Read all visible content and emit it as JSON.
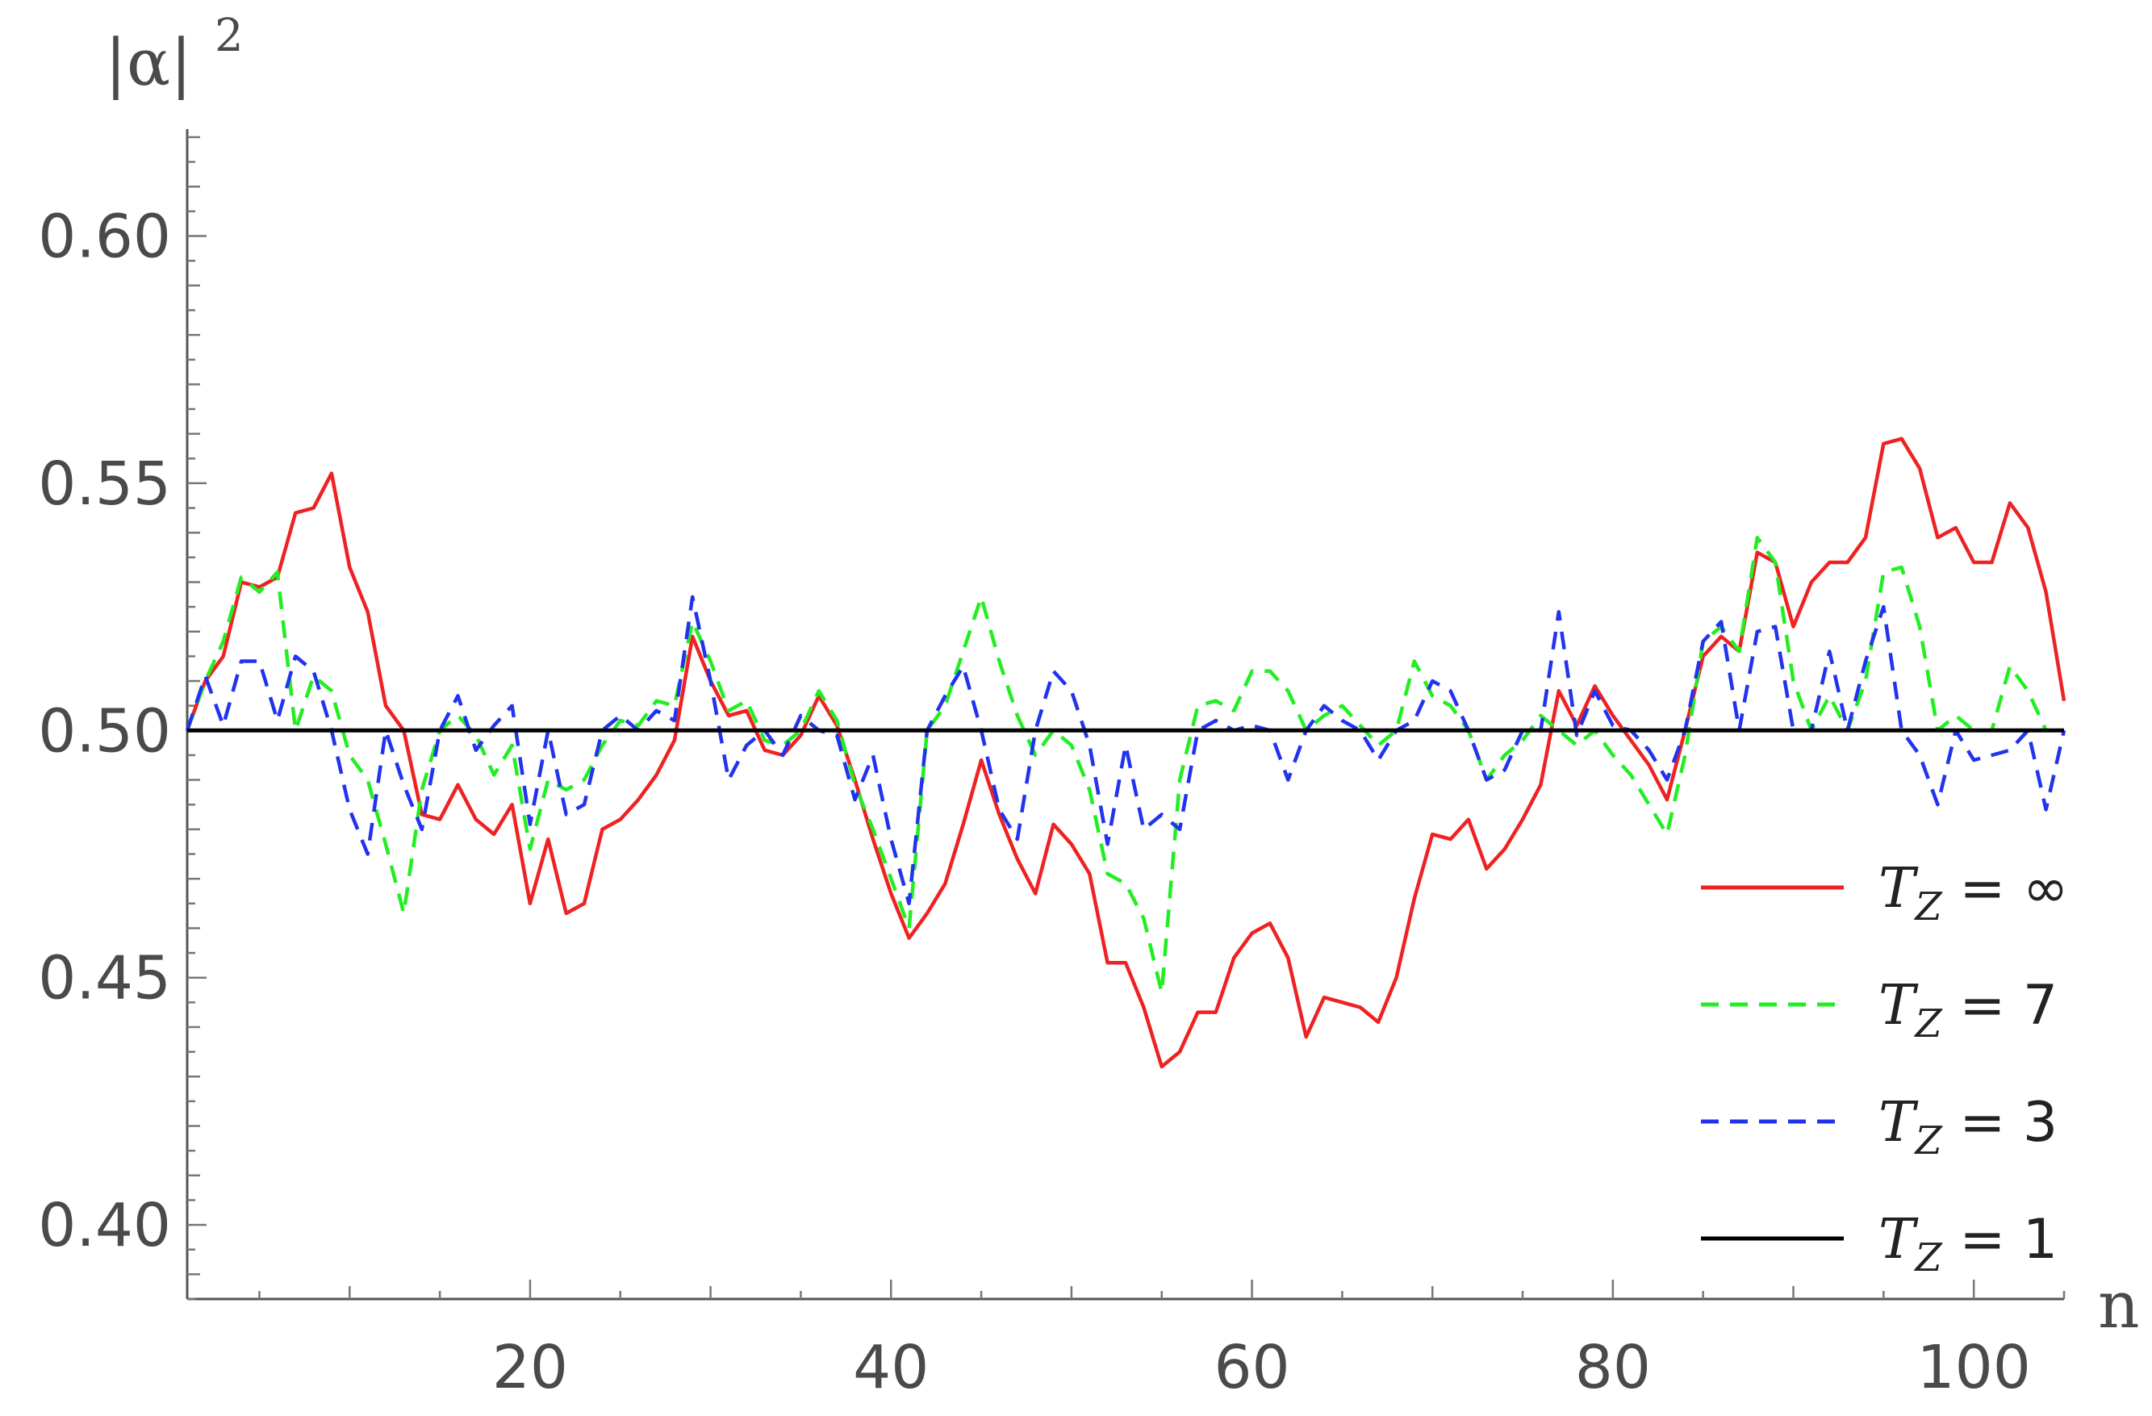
{
  "chart_data": {
    "type": "line",
    "xlabel": "n",
    "ylabel": "|α|",
    "ylabel_sup": "2",
    "xlim": [
      1,
      105
    ],
    "ylim": [
      0.385,
      0.62
    ],
    "xticks": [
      20,
      40,
      60,
      80,
      100
    ],
    "yticks": [
      0.4,
      0.45,
      0.5,
      0.55,
      0.6
    ],
    "ytick_labels": [
      "0.40",
      "0.45",
      "0.50",
      "0.55",
      "0.60"
    ],
    "grid": false,
    "legend_position": "lower-right",
    "series": [
      {
        "name": "T_Z = ∞",
        "legend_prefix": "T",
        "legend_sub": "Z",
        "legend_suffix": " = ∞",
        "color": "#ee2222",
        "dash": "solid",
        "points": [
          [
            1,
            0.5
          ],
          [
            2,
            0.51
          ],
          [
            3,
            0.515
          ],
          [
            4,
            0.53
          ],
          [
            5,
            0.529
          ],
          [
            6,
            0.531
          ],
          [
            7,
            0.544
          ],
          [
            8,
            0.545
          ],
          [
            9,
            0.552
          ],
          [
            10,
            0.533
          ],
          [
            11,
            0.524
          ],
          [
            12,
            0.505
          ],
          [
            13,
            0.5
          ],
          [
            14,
            0.483
          ],
          [
            15,
            0.482
          ],
          [
            16,
            0.489
          ],
          [
            17,
            0.482
          ],
          [
            18,
            0.479
          ],
          [
            19,
            0.485
          ],
          [
            20,
            0.465
          ],
          [
            21,
            0.478
          ],
          [
            22,
            0.463
          ],
          [
            23,
            0.465
          ],
          [
            24,
            0.48
          ],
          [
            25,
            0.482
          ],
          [
            26,
            0.486
          ],
          [
            27,
            0.491
          ],
          [
            28,
            0.498
          ],
          [
            29,
            0.519
          ],
          [
            30,
            0.51
          ],
          [
            31,
            0.503
          ],
          [
            32,
            0.504
          ],
          [
            33,
            0.496
          ],
          [
            34,
            0.495
          ],
          [
            35,
            0.499
          ],
          [
            36,
            0.507
          ],
          [
            37,
            0.501
          ],
          [
            38,
            0.49
          ],
          [
            39,
            0.478
          ],
          [
            40,
            0.467
          ],
          [
            41,
            0.458
          ],
          [
            42,
            0.463
          ],
          [
            43,
            0.469
          ],
          [
            44,
            0.481
          ],
          [
            45,
            0.494
          ],
          [
            46,
            0.483
          ],
          [
            47,
            0.474
          ],
          [
            48,
            0.467
          ],
          [
            49,
            0.481
          ],
          [
            50,
            0.477
          ],
          [
            51,
            0.471
          ],
          [
            52,
            0.453
          ],
          [
            53,
            0.453
          ],
          [
            54,
            0.444
          ],
          [
            55,
            0.432
          ],
          [
            56,
            0.435
          ],
          [
            57,
            0.443
          ],
          [
            58,
            0.443
          ],
          [
            59,
            0.454
          ],
          [
            60,
            0.459
          ],
          [
            61,
            0.461
          ],
          [
            62,
            0.454
          ],
          [
            63,
            0.438
          ],
          [
            64,
            0.446
          ],
          [
            65,
            0.445
          ],
          [
            66,
            0.444
          ],
          [
            67,
            0.441
          ],
          [
            68,
            0.45
          ],
          [
            69,
            0.466
          ],
          [
            70,
            0.479
          ],
          [
            71,
            0.478
          ],
          [
            72,
            0.482
          ],
          [
            73,
            0.472
          ],
          [
            74,
            0.476
          ],
          [
            75,
            0.482
          ],
          [
            76,
            0.489
          ],
          [
            77,
            0.508
          ],
          [
            78,
            0.501
          ],
          [
            79,
            0.509
          ],
          [
            80,
            0.503
          ],
          [
            81,
            0.498
          ],
          [
            82,
            0.493
          ],
          [
            83,
            0.486
          ],
          [
            84,
            0.5
          ],
          [
            85,
            0.515
          ],
          [
            86,
            0.519
          ],
          [
            87,
            0.516
          ],
          [
            88,
            0.536
          ],
          [
            89,
            0.534
          ],
          [
            90,
            0.521
          ],
          [
            91,
            0.53
          ],
          [
            92,
            0.534
          ],
          [
            93,
            0.534
          ],
          [
            94,
            0.539
          ],
          [
            95,
            0.558
          ],
          [
            96,
            0.559
          ],
          [
            97,
            0.553
          ],
          [
            98,
            0.539
          ],
          [
            99,
            0.541
          ],
          [
            100,
            0.534
          ],
          [
            101,
            0.534
          ],
          [
            102,
            0.546
          ],
          [
            103,
            0.541
          ],
          [
            104,
            0.528
          ],
          [
            105,
            0.506
          ]
        ]
      },
      {
        "name": "T_Z = 7",
        "legend_prefix": "T",
        "legend_sub": "Z",
        "legend_suffix": " = 7",
        "color": "#22ee22",
        "dash": "dashed",
        "points": [
          [
            1,
            0.5
          ],
          [
            2,
            0.51
          ],
          [
            3,
            0.518
          ],
          [
            4,
            0.531
          ],
          [
            5,
            0.528
          ],
          [
            6,
            0.532
          ],
          [
            7,
            0.5
          ],
          [
            8,
            0.511
          ],
          [
            9,
            0.508
          ],
          [
            10,
            0.495
          ],
          [
            11,
            0.49
          ],
          [
            12,
            0.477
          ],
          [
            13,
            0.463
          ],
          [
            14,
            0.488
          ],
          [
            15,
            0.5
          ],
          [
            16,
            0.503
          ],
          [
            17,
            0.499
          ],
          [
            18,
            0.491
          ],
          [
            19,
            0.497
          ],
          [
            20,
            0.476
          ],
          [
            21,
            0.49
          ],
          [
            22,
            0.488
          ],
          [
            23,
            0.49
          ],
          [
            24,
            0.497
          ],
          [
            25,
            0.502
          ],
          [
            26,
            0.501
          ],
          [
            27,
            0.506
          ],
          [
            28,
            0.505
          ],
          [
            29,
            0.522
          ],
          [
            30,
            0.514
          ],
          [
            31,
            0.504
          ],
          [
            32,
            0.506
          ],
          [
            33,
            0.498
          ],
          [
            34,
            0.497
          ],
          [
            35,
            0.5
          ],
          [
            36,
            0.508
          ],
          [
            37,
            0.502
          ],
          [
            38,
            0.489
          ],
          [
            39,
            0.48
          ],
          [
            40,
            0.47
          ],
          [
            41,
            0.46
          ],
          [
            42,
            0.5
          ],
          [
            43,
            0.505
          ],
          [
            44,
            0.516
          ],
          [
            45,
            0.527
          ],
          [
            46,
            0.514
          ],
          [
            47,
            0.503
          ],
          [
            48,
            0.495
          ],
          [
            49,
            0.5
          ],
          [
            50,
            0.497
          ],
          [
            51,
            0.488
          ],
          [
            52,
            0.471
          ],
          [
            53,
            0.469
          ],
          [
            54,
            0.462
          ],
          [
            55,
            0.447
          ],
          [
            56,
            0.49
          ],
          [
            57,
            0.505
          ],
          [
            58,
            0.506
          ],
          [
            59,
            0.504
          ],
          [
            60,
            0.512
          ],
          [
            61,
            0.512
          ],
          [
            62,
            0.508
          ],
          [
            63,
            0.5
          ],
          [
            64,
            0.503
          ],
          [
            65,
            0.505
          ],
          [
            66,
            0.501
          ],
          [
            67,
            0.497
          ],
          [
            68,
            0.5
          ],
          [
            69,
            0.514
          ],
          [
            70,
            0.507
          ],
          [
            71,
            0.505
          ],
          [
            72,
            0.5
          ],
          [
            73,
            0.49
          ],
          [
            74,
            0.495
          ],
          [
            75,
            0.498
          ],
          [
            76,
            0.503
          ],
          [
            77,
            0.5
          ],
          [
            78,
            0.497
          ],
          [
            79,
            0.5
          ],
          [
            80,
            0.495
          ],
          [
            81,
            0.491
          ],
          [
            82,
            0.485
          ],
          [
            83,
            0.479
          ],
          [
            84,
            0.495
          ],
          [
            85,
            0.518
          ],
          [
            86,
            0.521
          ],
          [
            87,
            0.516
          ],
          [
            88,
            0.539
          ],
          [
            89,
            0.534
          ],
          [
            90,
            0.51
          ],
          [
            91,
            0.5
          ],
          [
            92,
            0.507
          ],
          [
            93,
            0.5
          ],
          [
            94,
            0.51
          ],
          [
            95,
            0.532
          ],
          [
            96,
            0.533
          ],
          [
            97,
            0.521
          ],
          [
            98,
            0.5
          ],
          [
            99,
            0.503
          ],
          [
            100,
            0.5
          ],
          [
            101,
            0.5
          ],
          [
            102,
            0.513
          ],
          [
            103,
            0.508
          ],
          [
            104,
            0.5
          ],
          [
            105,
            0.5
          ]
        ]
      },
      {
        "name": "T_Z = 3",
        "legend_prefix": "T",
        "legend_sub": "Z",
        "legend_suffix": " = 3",
        "color": "#2233ee",
        "dash": "dashed",
        "points": [
          [
            1,
            0.5
          ],
          [
            2,
            0.511
          ],
          [
            3,
            0.501
          ],
          [
            4,
            0.514
          ],
          [
            5,
            0.514
          ],
          [
            6,
            0.502
          ],
          [
            7,
            0.515
          ],
          [
            8,
            0.512
          ],
          [
            9,
            0.5
          ],
          [
            10,
            0.484
          ],
          [
            11,
            0.475
          ],
          [
            12,
            0.5
          ],
          [
            13,
            0.489
          ],
          [
            14,
            0.48
          ],
          [
            15,
            0.5
          ],
          [
            16,
            0.507
          ],
          [
            17,
            0.496
          ],
          [
            18,
            0.501
          ],
          [
            19,
            0.505
          ],
          [
            20,
            0.481
          ],
          [
            21,
            0.5
          ],
          [
            22,
            0.483
          ],
          [
            23,
            0.485
          ],
          [
            24,
            0.5
          ],
          [
            25,
            0.503
          ],
          [
            26,
            0.5
          ],
          [
            27,
            0.504
          ],
          [
            28,
            0.502
          ],
          [
            29,
            0.527
          ],
          [
            30,
            0.51
          ],
          [
            31,
            0.49
          ],
          [
            32,
            0.497
          ],
          [
            33,
            0.5
          ],
          [
            34,
            0.495
          ],
          [
            35,
            0.503
          ],
          [
            36,
            0.5
          ],
          [
            37,
            0.499
          ],
          [
            38,
            0.486
          ],
          [
            39,
            0.495
          ],
          [
            40,
            0.478
          ],
          [
            41,
            0.465
          ],
          [
            42,
            0.5
          ],
          [
            43,
            0.507
          ],
          [
            44,
            0.513
          ],
          [
            45,
            0.5
          ],
          [
            46,
            0.484
          ],
          [
            47,
            0.478
          ],
          [
            48,
            0.5
          ],
          [
            49,
            0.512
          ],
          [
            50,
            0.508
          ],
          [
            51,
            0.497
          ],
          [
            52,
            0.477
          ],
          [
            53,
            0.497
          ],
          [
            54,
            0.48
          ],
          [
            55,
            0.483
          ],
          [
            56,
            0.48
          ],
          [
            57,
            0.5
          ],
          [
            58,
            0.502
          ],
          [
            59,
            0.5
          ],
          [
            60,
            0.501
          ],
          [
            61,
            0.5
          ],
          [
            62,
            0.49
          ],
          [
            63,
            0.5
          ],
          [
            64,
            0.505
          ],
          [
            65,
            0.502
          ],
          [
            66,
            0.5
          ],
          [
            67,
            0.494
          ],
          [
            68,
            0.5
          ],
          [
            69,
            0.502
          ],
          [
            70,
            0.51
          ],
          [
            71,
            0.508
          ],
          [
            72,
            0.5
          ],
          [
            73,
            0.49
          ],
          [
            74,
            0.492
          ],
          [
            75,
            0.5
          ],
          [
            76,
            0.5
          ],
          [
            77,
            0.524
          ],
          [
            78,
            0.499
          ],
          [
            79,
            0.508
          ],
          [
            80,
            0.501
          ],
          [
            81,
            0.5
          ],
          [
            82,
            0.496
          ],
          [
            83,
            0.49
          ],
          [
            84,
            0.5
          ],
          [
            85,
            0.518
          ],
          [
            86,
            0.522
          ],
          [
            87,
            0.5
          ],
          [
            88,
            0.52
          ],
          [
            89,
            0.521
          ],
          [
            90,
            0.5
          ],
          [
            91,
            0.5
          ],
          [
            92,
            0.516
          ],
          [
            93,
            0.5
          ],
          [
            94,
            0.514
          ],
          [
            95,
            0.525
          ],
          [
            96,
            0.5
          ],
          [
            97,
            0.495
          ],
          [
            98,
            0.485
          ],
          [
            99,
            0.5
          ],
          [
            100,
            0.494
          ],
          [
            101,
            0.495
          ],
          [
            102,
            0.496
          ],
          [
            103,
            0.5
          ],
          [
            104,
            0.484
          ],
          [
            105,
            0.5
          ]
        ]
      },
      {
        "name": "T_Z = 1",
        "legend_prefix": "T",
        "legend_sub": "Z",
        "legend_suffix": " = 1",
        "color": "#000000",
        "dash": "solid",
        "points": [
          [
            1,
            0.5
          ],
          [
            105,
            0.5
          ]
        ]
      }
    ]
  }
}
